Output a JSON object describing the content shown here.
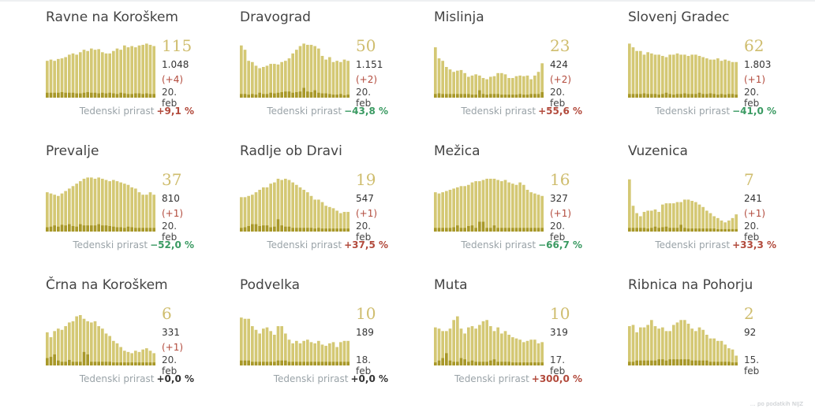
{
  "colors": {
    "bar": "#d4c874",
    "bar_dark": "#9a8810",
    "big_number": "#cfbd6e",
    "positive": "#b24a3c",
    "negative": "#3a9a62"
  },
  "growth_label": "Tedenski prirast",
  "footer": "… po podatkih NIJZ",
  "chart_data": [
    {
      "type": "bar",
      "name": "Ravne na Koroškem",
      "active": "115",
      "total": "1.048",
      "delta": "(+4)",
      "date": "20. feb",
      "growth": "+9,1 %",
      "growth_sign": "pos",
      "values": [
        60,
        62,
        60,
        63,
        64,
        66,
        70,
        72,
        70,
        74,
        78,
        76,
        80,
        78,
        79,
        74,
        72,
        72,
        76,
        80,
        78,
        85,
        82,
        84,
        82,
        85,
        86,
        88,
        86,
        84
      ],
      "new_cases": [
        8,
        8,
        8,
        8,
        9,
        8,
        8,
        8,
        7,
        7,
        8,
        9,
        8,
        8,
        7,
        8,
        7,
        8,
        7,
        6,
        8,
        7,
        6,
        6,
        7,
        7,
        6,
        7,
        6,
        6
      ]
    },
    {
      "type": "bar",
      "name": "Dravograd",
      "active": "50",
      "total": "1.151",
      "delta": "(+2)",
      "date": "20. feb",
      "growth": "−43,8 %",
      "growth_sign": "neg",
      "values": [
        85,
        78,
        60,
        58,
        52,
        48,
        50,
        52,
        55,
        55,
        54,
        58,
        60,
        64,
        72,
        78,
        84,
        88,
        86,
        86,
        84,
        80,
        68,
        62,
        66,
        58,
        60,
        58,
        62,
        60
      ],
      "new_cases": [
        6,
        6,
        5,
        6,
        5,
        8,
        6,
        6,
        8,
        7,
        8,
        9,
        10,
        10,
        8,
        9,
        10,
        16,
        10,
        9,
        12,
        8,
        7,
        7,
        6,
        5,
        5,
        6,
        4,
        5
      ]
    },
    {
      "type": "bar",
      "name": "Mislinja",
      "active": "23",
      "total": "424",
      "delta": "(+2)",
      "date": "20. feb",
      "growth": "+55,6 %",
      "growth_sign": "pos",
      "values": [
        82,
        64,
        60,
        50,
        46,
        42,
        44,
        45,
        40,
        34,
        36,
        38,
        36,
        32,
        30,
        34,
        35,
        40,
        40,
        38,
        32,
        32,
        35,
        36,
        35,
        36,
        30,
        36,
        42,
        56
      ],
      "new_cases": [
        6,
        7,
        6,
        6,
        6,
        6,
        6,
        6,
        6,
        6,
        5,
        5,
        12,
        6,
        5,
        6,
        6,
        6,
        5,
        5,
        5,
        5,
        5,
        6,
        5,
        5,
        6,
        6,
        6,
        9
      ]
    },
    {
      "type": "bar",
      "name": "Slovenj Gradec",
      "active": "62",
      "total": "1.803",
      "delta": "(+1)",
      "date": "20. feb",
      "growth": "−41,0 %",
      "growth_sign": "neg",
      "values": [
        88,
        82,
        76,
        76,
        70,
        74,
        72,
        70,
        70,
        68,
        66,
        70,
        70,
        72,
        70,
        70,
        68,
        70,
        70,
        68,
        66,
        64,
        62,
        62,
        64,
        60,
        62,
        60,
        58,
        58
      ],
      "new_cases": [
        6,
        6,
        6,
        6,
        7,
        6,
        6,
        6,
        5,
        6,
        8,
        6,
        5,
        6,
        6,
        7,
        6,
        6,
        6,
        8,
        6,
        6,
        7,
        6,
        5,
        6,
        5,
        6,
        6,
        5
      ]
    },
    {
      "type": "bar",
      "name": "Prevalje",
      "active": "37",
      "total": "810",
      "delta": "(+1)",
      "date": "20. feb",
      "growth": "−52,0 %",
      "growth_sign": "neg",
      "values": [
        64,
        62,
        60,
        58,
        62,
        66,
        70,
        74,
        78,
        82,
        86,
        88,
        88,
        86,
        88,
        86,
        84,
        82,
        84,
        82,
        80,
        78,
        76,
        72,
        70,
        64,
        60,
        60,
        64,
        60
      ],
      "new_cases": [
        7,
        8,
        10,
        8,
        11,
        10,
        12,
        9,
        8,
        12,
        10,
        10,
        10,
        10,
        12,
        10,
        10,
        9,
        8,
        7,
        7,
        6,
        8,
        7,
        6,
        6,
        6,
        6,
        6,
        6
      ]
    },
    {
      "type": "bar",
      "name": "Radlje ob Dravi",
      "active": "19",
      "total": "547",
      "delta": "(+1)",
      "date": "20. feb",
      "growth": "+37,5 %",
      "growth_sign": "pos",
      "values": [
        56,
        56,
        58,
        60,
        64,
        68,
        72,
        72,
        78,
        80,
        86,
        84,
        86,
        84,
        80,
        76,
        72,
        68,
        64,
        58,
        52,
        52,
        48,
        42,
        40,
        38,
        34,
        30,
        32,
        32
      ],
      "new_cases": [
        6,
        7,
        9,
        12,
        12,
        9,
        10,
        10,
        7,
        8,
        20,
        10,
        8,
        8,
        6,
        6,
        6,
        6,
        6,
        6,
        5,
        6,
        5,
        5,
        5,
        5,
        5,
        5,
        5,
        5
      ]
    },
    {
      "type": "bar",
      "name": "Mežica",
      "active": "16",
      "total": "327",
      "delta": "(+1)",
      "date": "20. feb",
      "growth": "−66,7 %",
      "growth_sign": "neg",
      "values": [
        64,
        62,
        64,
        66,
        68,
        70,
        72,
        74,
        74,
        76,
        80,
        82,
        82,
        84,
        86,
        86,
        86,
        84,
        82,
        84,
        80,
        78,
        76,
        80,
        76,
        68,
        64,
        62,
        60,
        58
      ],
      "new_cases": [
        6,
        6,
        6,
        6,
        6,
        7,
        10,
        6,
        6,
        9,
        10,
        6,
        16,
        16,
        6,
        6,
        10,
        6,
        6,
        6,
        6,
        6,
        6,
        6,
        6,
        6,
        6,
        6,
        6,
        6
      ]
    },
    {
      "type": "bar",
      "name": "Vuzenica",
      "active": "7",
      "total": "241",
      "delta": "(+1)",
      "date": "20. feb",
      "growth": "+33,3 %",
      "growth_sign": "pos",
      "values": [
        85,
        42,
        30,
        25,
        32,
        34,
        34,
        36,
        32,
        44,
        46,
        46,
        46,
        48,
        48,
        52,
        52,
        50,
        48,
        44,
        40,
        34,
        30,
        25,
        22,
        18,
        15,
        18,
        22,
        28
      ],
      "new_cases": [
        6,
        6,
        6,
        6,
        6,
        5,
        6,
        8,
        6,
        7,
        8,
        6,
        6,
        6,
        11,
        6,
        5,
        5,
        5,
        5,
        5,
        5,
        5,
        5,
        4,
        4,
        4,
        4,
        4,
        4
      ]
    },
    {
      "type": "bar",
      "name": "Črna na Koroškem",
      "active": "6",
      "total": "331",
      "delta": "(+1)",
      "date": "20. feb",
      "growth": "+0,0 %",
      "growth_sign": "zero",
      "values": [
        54,
        46,
        56,
        60,
        58,
        64,
        70,
        72,
        80,
        82,
        76,
        72,
        70,
        72,
        64,
        60,
        52,
        48,
        40,
        36,
        30,
        24,
        22,
        20,
        24,
        22,
        26,
        28,
        24,
        20
      ],
      "new_cases": [
        12,
        14,
        18,
        8,
        6,
        6,
        9,
        6,
        6,
        6,
        22,
        18,
        6,
        6,
        6,
        6,
        6,
        6,
        5,
        5,
        5,
        5,
        5,
        5,
        5,
        5,
        5,
        5,
        5,
        5
      ]
    },
    {
      "type": "bar",
      "name": "Podvelka",
      "active": "10",
      "total": "189",
      "delta": "",
      "date": "18. feb",
      "growth": "+0,0 %",
      "growth_sign": "zero",
      "values": [
        78,
        76,
        76,
        64,
        58,
        52,
        60,
        62,
        56,
        50,
        64,
        64,
        52,
        42,
        36,
        40,
        36,
        40,
        42,
        38,
        36,
        40,
        34,
        32,
        36,
        38,
        30,
        38,
        40,
        40
      ],
      "new_cases": [
        8,
        8,
        8,
        6,
        6,
        6,
        6,
        6,
        6,
        6,
        8,
        8,
        8,
        6,
        6,
        6,
        6,
        6,
        6,
        6,
        6,
        6,
        6,
        6,
        6,
        6,
        6,
        6,
        6,
        6
      ]
    },
    {
      "type": "bar",
      "name": "Muta",
      "active": "10",
      "total": "319",
      "delta": "",
      "date": "17. feb",
      "growth": "+300,0 %",
      "growth_sign": "pos",
      "values": [
        62,
        60,
        56,
        56,
        60,
        74,
        80,
        60,
        52,
        62,
        64,
        60,
        66,
        72,
        74,
        64,
        56,
        62,
        52,
        56,
        50,
        46,
        44,
        42,
        38,
        40,
        42,
        42,
        36,
        38
      ],
      "new_cases": [
        5,
        8,
        12,
        20,
        8,
        6,
        6,
        12,
        10,
        6,
        8,
        6,
        6,
        6,
        6,
        8,
        10,
        6,
        6,
        6,
        6,
        5,
        5,
        5,
        5,
        5,
        5,
        5,
        5,
        5
      ]
    },
    {
      "type": "bar",
      "name": "Ribnica na Pohorju",
      "active": "2",
      "total": "92",
      "delta": "",
      "date": "15. feb",
      "growth": "",
      "growth_sign": "zero",
      "values": [
        64,
        66,
        54,
        62,
        62,
        66,
        74,
        64,
        60,
        62,
        56,
        56,
        66,
        70,
        74,
        74,
        68,
        60,
        56,
        62,
        58,
        50,
        44,
        44,
        40,
        40,
        34,
        28,
        26,
        16
      ],
      "new_cases": [
        6,
        6,
        8,
        8,
        8,
        8,
        8,
        8,
        10,
        10,
        8,
        10,
        10,
        10,
        10,
        10,
        10,
        8,
        8,
        8,
        8,
        8,
        6,
        6,
        6,
        6,
        6,
        6,
        5,
        5
      ]
    }
  ]
}
